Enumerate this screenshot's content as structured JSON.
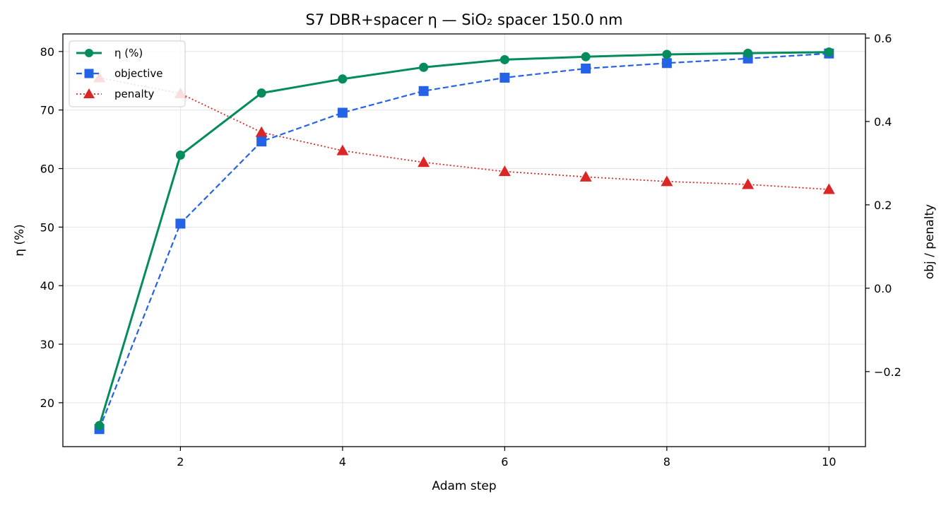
{
  "chart_data": {
    "type": "line",
    "title": "S7 DBR+spacer η — SiO₂ spacer 150.0 nm",
    "xlabel": "Adam step",
    "ylabel_left": "η (%)",
    "ylabel_right": "obj / penalty",
    "x": [
      1,
      2,
      3,
      4,
      5,
      6,
      7,
      8,
      9,
      10
    ],
    "xlim": [
      0.55,
      10.45
    ],
    "ylim_left": [
      12.5,
      83.0
    ],
    "ylim_right": [
      -0.38,
      0.61
    ],
    "xticks": [
      2,
      4,
      6,
      8,
      10
    ],
    "yticks_left": [
      20,
      30,
      40,
      50,
      60,
      70,
      80
    ],
    "yticks_right": [
      -0.2,
      0.0,
      0.2,
      0.4,
      0.6
    ],
    "ytick_labels_right": [
      "−0.2",
      "0.0",
      "0.2",
      "0.4",
      "0.6"
    ],
    "grid": true,
    "legend_position": "upper-left",
    "series": [
      {
        "name": "η (%)",
        "axis": "left",
        "color": "#048c5c",
        "linestyle": "solid",
        "marker": "circle",
        "values": [
          16.1,
          62.3,
          72.9,
          75.3,
          77.3,
          78.6,
          79.1,
          79.5,
          79.7,
          79.9
        ]
      },
      {
        "name": "objective",
        "axis": "right",
        "color": "#2563e6",
        "linestyle": "dashed",
        "marker": "square",
        "values": [
          -0.338,
          0.155,
          0.352,
          0.421,
          0.473,
          0.505,
          0.527,
          0.54,
          0.551,
          0.563
        ]
      },
      {
        "name": "penalty",
        "axis": "right",
        "color": "#dc2626",
        "linestyle": "dotted",
        "marker": "triangle",
        "values": [
          0.505,
          0.467,
          0.374,
          0.33,
          0.302,
          0.28,
          0.267,
          0.256,
          0.249,
          0.237
        ]
      }
    ]
  }
}
